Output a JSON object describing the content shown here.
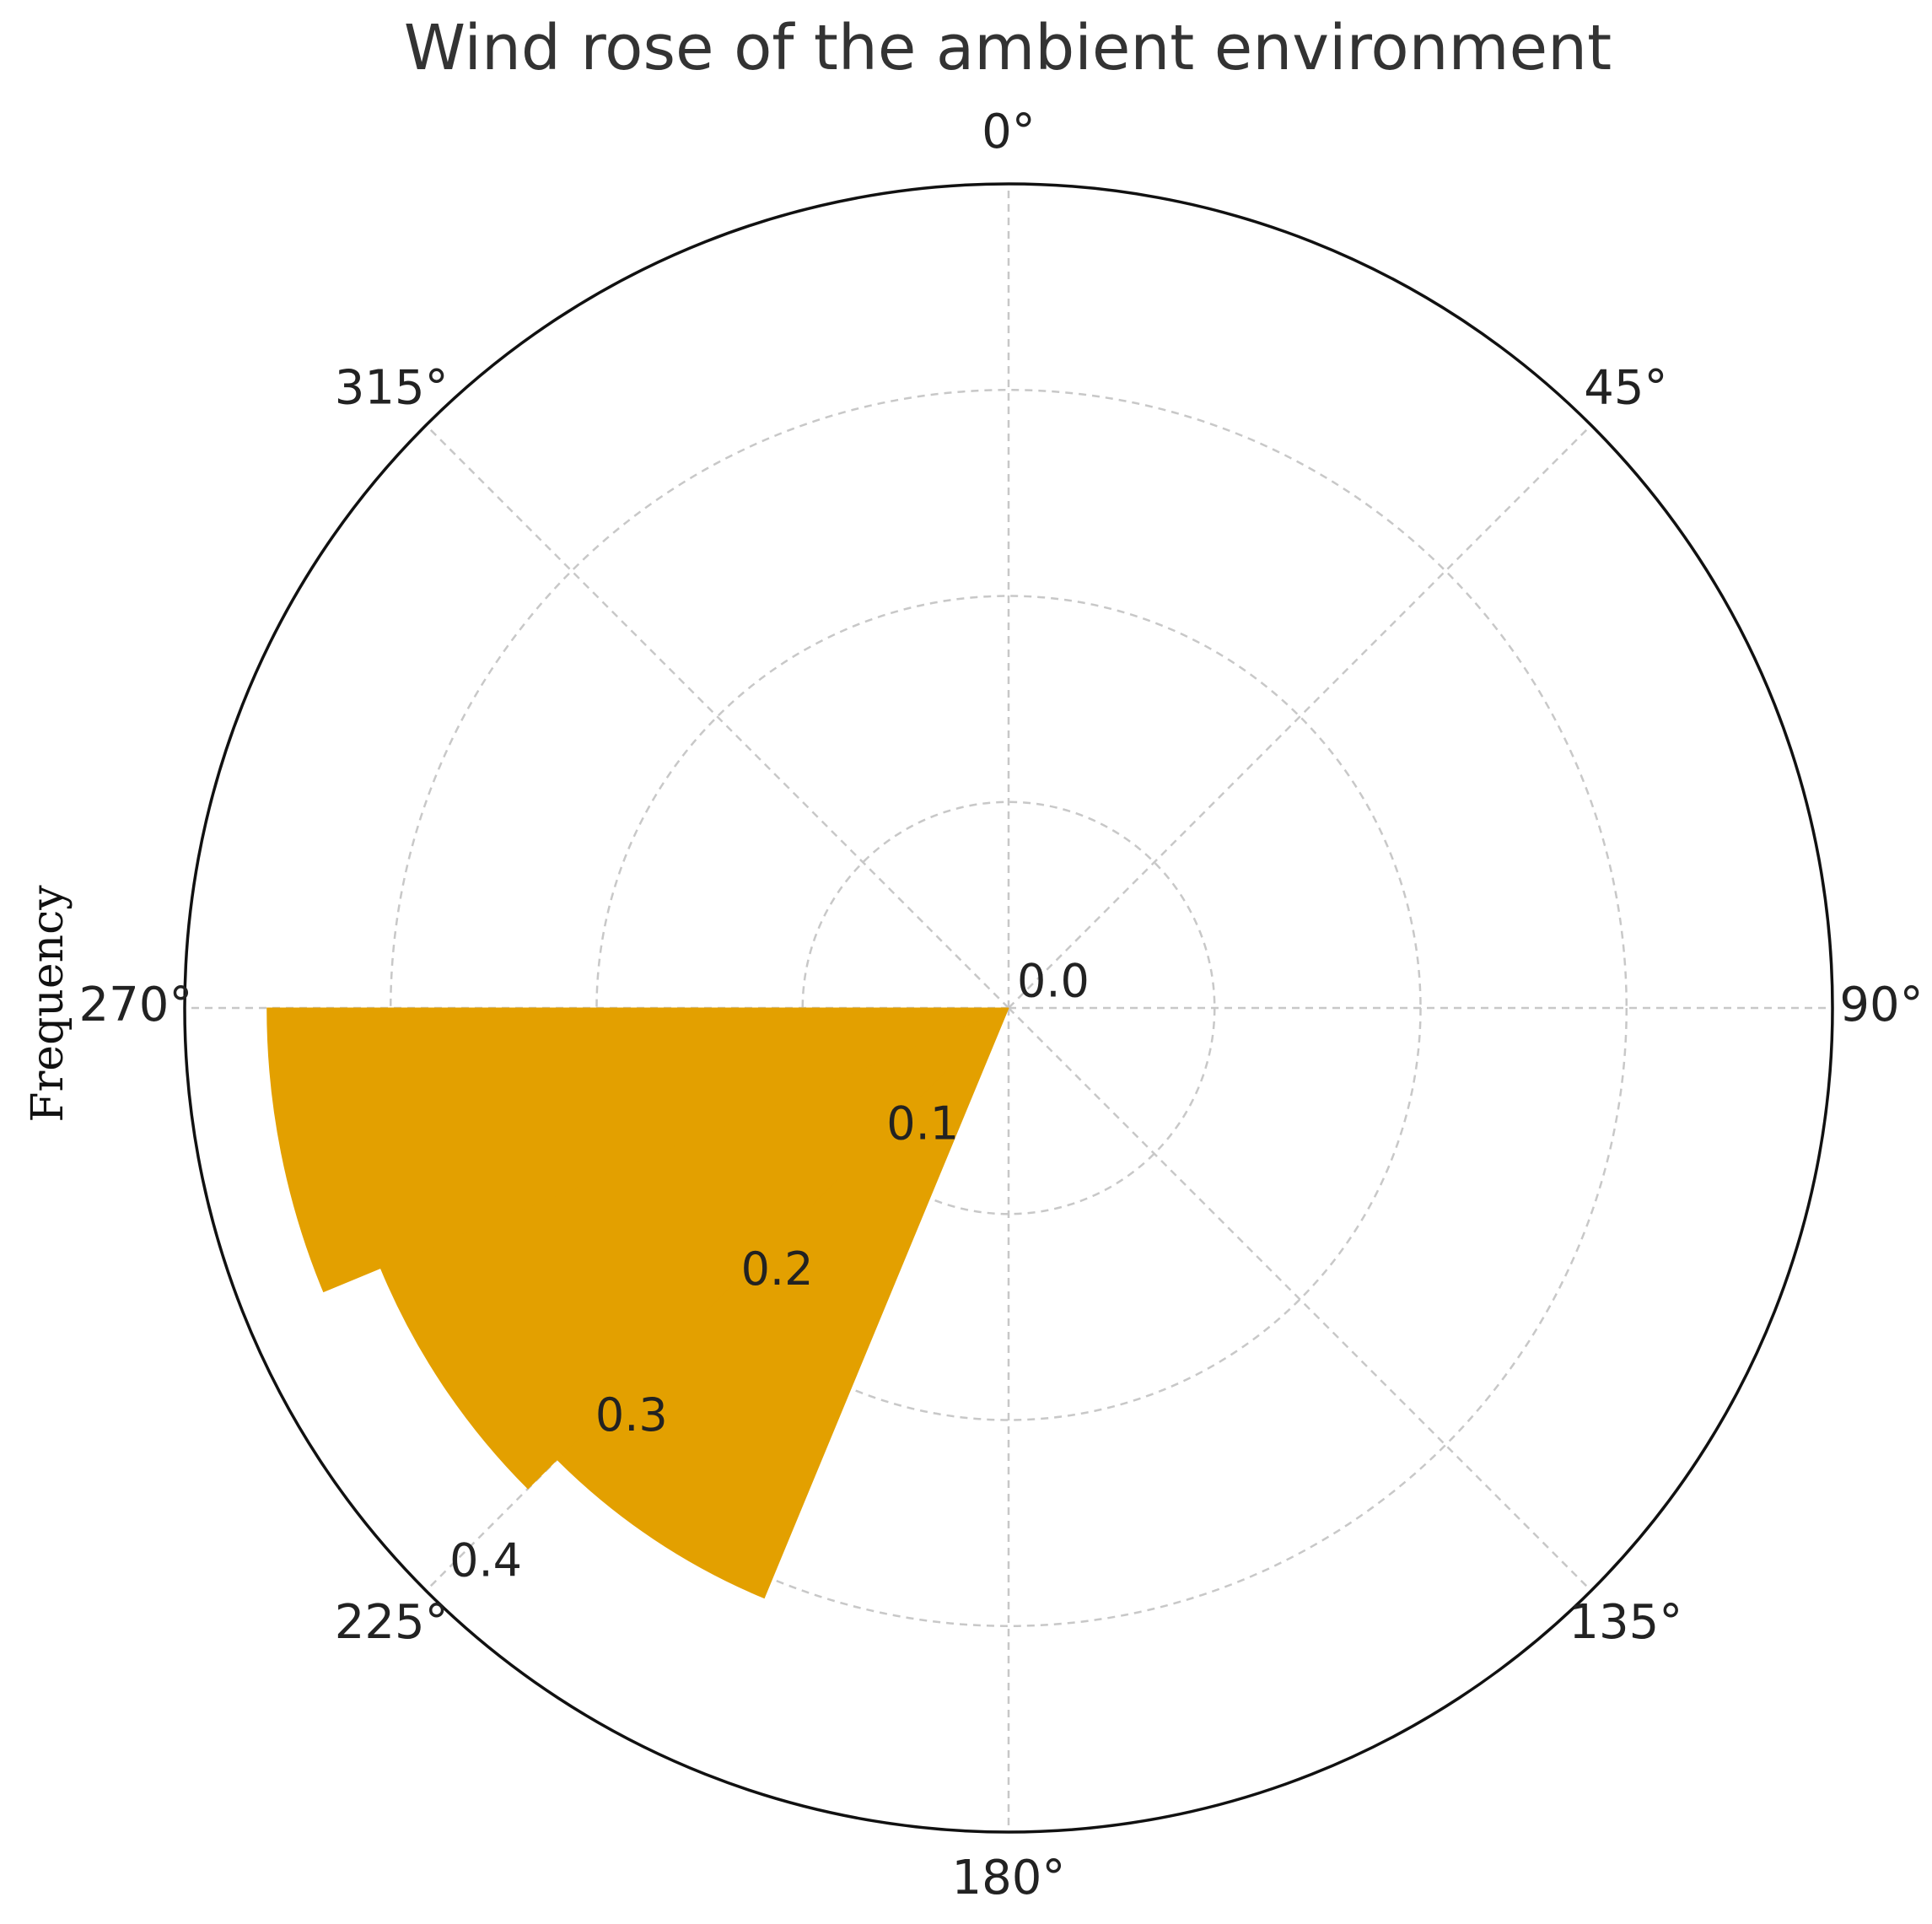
{
  "chart_data": {
    "type": "bar",
    "subtype": "polar-wind-rose",
    "title": "Wind rose of the ambient environment",
    "ylabel": "Frequency",
    "theta_direction": "clockwise",
    "theta_zero_location": "N",
    "theta_ticks": [
      0,
      45,
      90,
      135,
      180,
      225,
      270,
      315
    ],
    "theta_tick_labels": [
      "0°",
      "45°",
      "90°",
      "135°",
      "180°",
      "225°",
      "270°",
      "315°"
    ],
    "r_ticks": [
      0.0,
      0.1,
      0.2,
      0.3,
      0.4
    ],
    "r_tick_labels": [
      "0.0",
      "0.1",
      "0.2",
      "0.3",
      "0.4"
    ],
    "r_tick_label_angle_deg": 225,
    "rlim": [
      0,
      0.4
    ],
    "grid": true,
    "color": "#E3A000",
    "bars": [
      {
        "theta_start_deg": 202.5,
        "theta_end_deg": 225,
        "value": 0.31
      },
      {
        "theta_start_deg": 225,
        "theta_end_deg": 247.5,
        "value": 0.33
      },
      {
        "theta_start_deg": 247.5,
        "theta_end_deg": 270,
        "value": 0.36
      }
    ]
  }
}
